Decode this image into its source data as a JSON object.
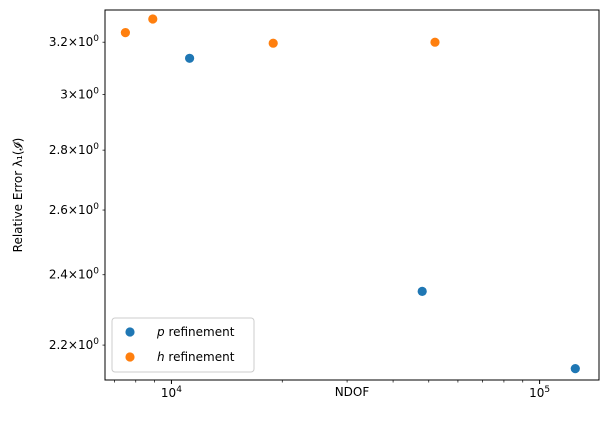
{
  "chart_data": {
    "type": "scatter",
    "title": "",
    "xlabel": "NDOF",
    "ylabel": "Relative Error λ₁(𝓘)",
    "x_scale": "log",
    "y_scale": "log",
    "xlim": [
      6600,
      145000
    ],
    "ylim": [
      2.107,
      3.33
    ],
    "x_ticks": [
      {
        "value": 10000,
        "base": "10",
        "exp": "4"
      },
      {
        "value": 100000,
        "base": "10",
        "exp": "5"
      }
    ],
    "y_ticks": [
      {
        "value": 2.2,
        "mant": "2.2",
        "base": "10",
        "exp": "0"
      },
      {
        "value": 2.4,
        "mant": "2.4",
        "base": "10",
        "exp": "0"
      },
      {
        "value": 2.6,
        "mant": "2.6",
        "base": "10",
        "exp": "0"
      },
      {
        "value": 2.8,
        "mant": "2.8",
        "base": "10",
        "exp": "0"
      },
      {
        "value": 3.0,
        "mant": "3",
        "base": "10",
        "exp": "0"
      },
      {
        "value": 3.2,
        "mant": "3.2",
        "base": "10",
        "exp": "0"
      }
    ],
    "series": [
      {
        "name": "p refinement",
        "name_var": "p",
        "name_rest": " refinement",
        "color": "#1f77b4",
        "points": [
          {
            "x": 11200,
            "y": 3.137
          },
          {
            "x": 48000,
            "y": 2.351
          },
          {
            "x": 125000,
            "y": 2.137
          }
        ]
      },
      {
        "name": "h refinement",
        "name_var": "h",
        "name_rest": " refinement",
        "color": "#ff7f0e",
        "points": [
          {
            "x": 7500,
            "y": 3.238
          },
          {
            "x": 8900,
            "y": 3.293
          },
          {
            "x": 18900,
            "y": 3.196
          },
          {
            "x": 52000,
            "y": 3.2
          }
        ]
      }
    ],
    "legend_position": "lower-left",
    "grid": false
  }
}
